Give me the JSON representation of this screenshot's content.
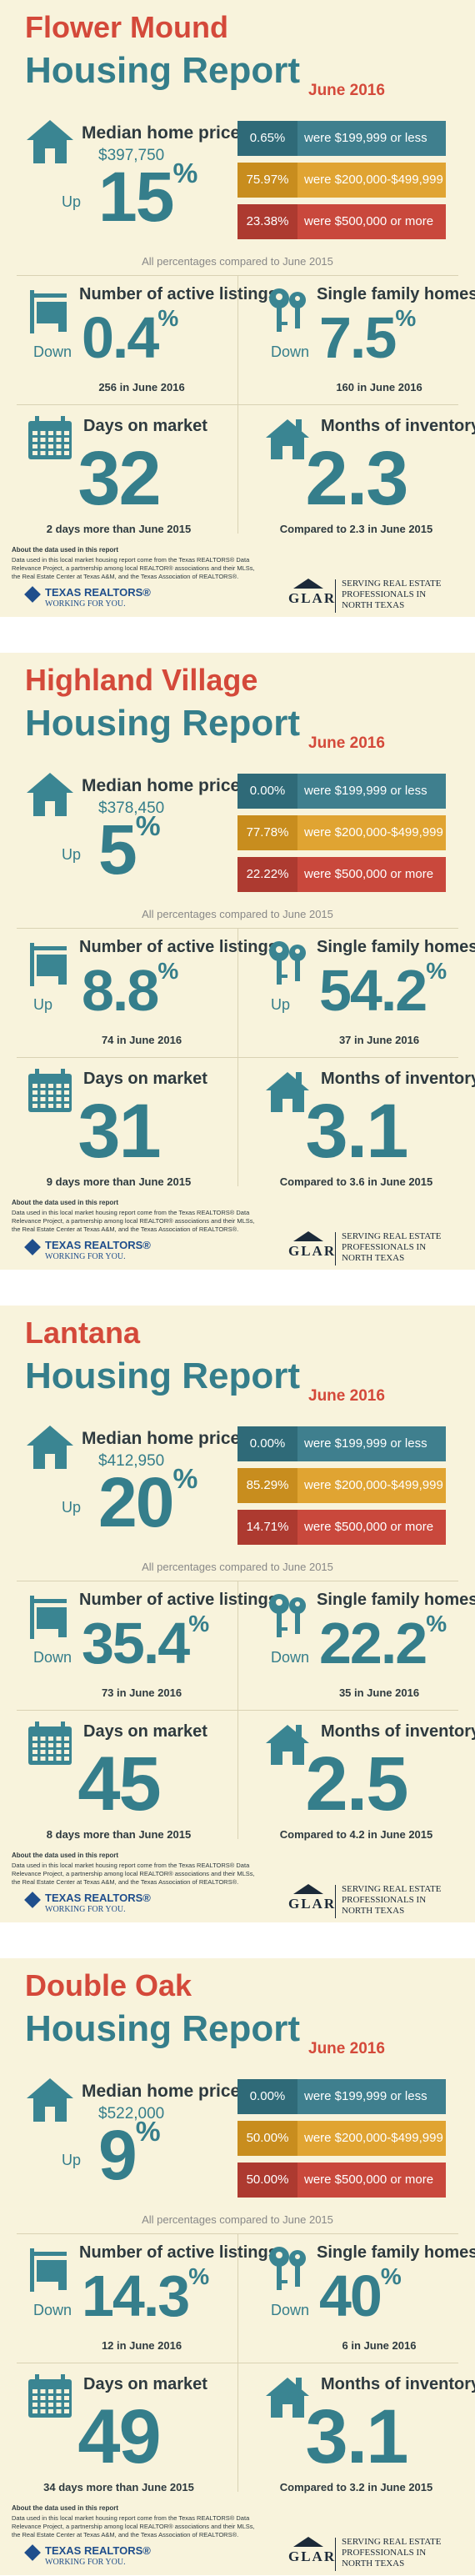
{
  "labels": {
    "housing_report": "Housing Report",
    "median_home_price": "Median home price",
    "price_ranges": [
      "were $199,999 or less",
      "were $200,000-$499,999",
      "were $500,000 or more"
    ],
    "compared_note": "All percentages compared to June 2015",
    "active_listings": "Number of active listings",
    "homes_sold": "Single family homes sold",
    "days_on_market": "Days on market",
    "months_of_inventory": "Months of inventory",
    "about_title": "About the data used in this report",
    "about_text": "Data used in this local market housing report come from the Texas REALTORS® Data Relevance Project, a partnership among local REALTOR® associations and their MLSs, the Real Estate Center at Texas A&M, and the Texas Association of REALTORS®.",
    "texas_realtors": "TEXAS REALTORS®",
    "working_for_you": "WORKING FOR YOU.",
    "glar": "GLAR",
    "glar_tagline": "SERVING REAL ESTATE PROFESSIONALS IN NORTH TEXAS"
  },
  "reports": [
    {
      "city": "Flower Mound",
      "date": "June 2016",
      "median_price": {
        "price": "$397,750",
        "direction": "Up",
        "change": "15",
        "unit": "%"
      },
      "price_shares": [
        "0.65%",
        "75.97%",
        "23.38%"
      ],
      "active_listings": {
        "direction": "Down",
        "change": "0.4",
        "unit": "%",
        "note": "256 in June 2016"
      },
      "homes_sold": {
        "direction": "Down",
        "change": "7.5",
        "unit": "%",
        "note": "160 in June 2016"
      },
      "days_on_market": {
        "value": "32",
        "note": "2 days more than June 2015"
      },
      "months_of_inventory": {
        "value": "2.3",
        "note": "Compared to 2.3 in June 2015"
      }
    },
    {
      "city": "Highland Village",
      "date": "June 2016",
      "median_price": {
        "price": "$378,450",
        "direction": "Up",
        "change": "5",
        "unit": "%"
      },
      "price_shares": [
        "0.00%",
        "77.78%",
        "22.22%"
      ],
      "active_listings": {
        "direction": "Up",
        "change": "8.8",
        "unit": "%",
        "note": "74 in June 2016"
      },
      "homes_sold": {
        "direction": "Up",
        "change": "54.2",
        "unit": "%",
        "note": "37 in June 2016"
      },
      "days_on_market": {
        "value": "31",
        "note": "9 days more than June 2015"
      },
      "months_of_inventory": {
        "value": "3.1",
        "note": "Compared to 3.6 in June 2015"
      }
    },
    {
      "city": "Lantana",
      "date": "June 2016",
      "median_price": {
        "price": "$412,950",
        "direction": "Up",
        "change": "20",
        "unit": "%"
      },
      "price_shares": [
        "0.00%",
        "85.29%",
        "14.71%"
      ],
      "active_listings": {
        "direction": "Down",
        "change": "35.4",
        "unit": "%",
        "note": "73 in June 2016"
      },
      "homes_sold": {
        "direction": "Down",
        "change": "22.2",
        "unit": "%",
        "note": "35 in June 2016"
      },
      "days_on_market": {
        "value": "45",
        "note": "8 days more than June 2015"
      },
      "months_of_inventory": {
        "value": "2.5",
        "note": "Compared to 4.2 in June 2015"
      }
    },
    {
      "city": "Double Oak",
      "date": "June 2016",
      "median_price": {
        "price": "$522,000",
        "direction": "Up",
        "change": "9",
        "unit": "%"
      },
      "price_shares": [
        "0.00%",
        "50.00%",
        "50.00%"
      ],
      "active_listings": {
        "direction": "Down",
        "change": "14.3",
        "unit": "%",
        "note": "12 in June 2016"
      },
      "homes_sold": {
        "direction": "Down",
        "change": "40",
        "unit": "%",
        "note": "6 in June 2016"
      },
      "days_on_market": {
        "value": "49",
        "note": "34 days more than June 2015"
      },
      "months_of_inventory": {
        "value": "3.1",
        "note": "Compared to 3.2 in June 2015"
      }
    }
  ]
}
